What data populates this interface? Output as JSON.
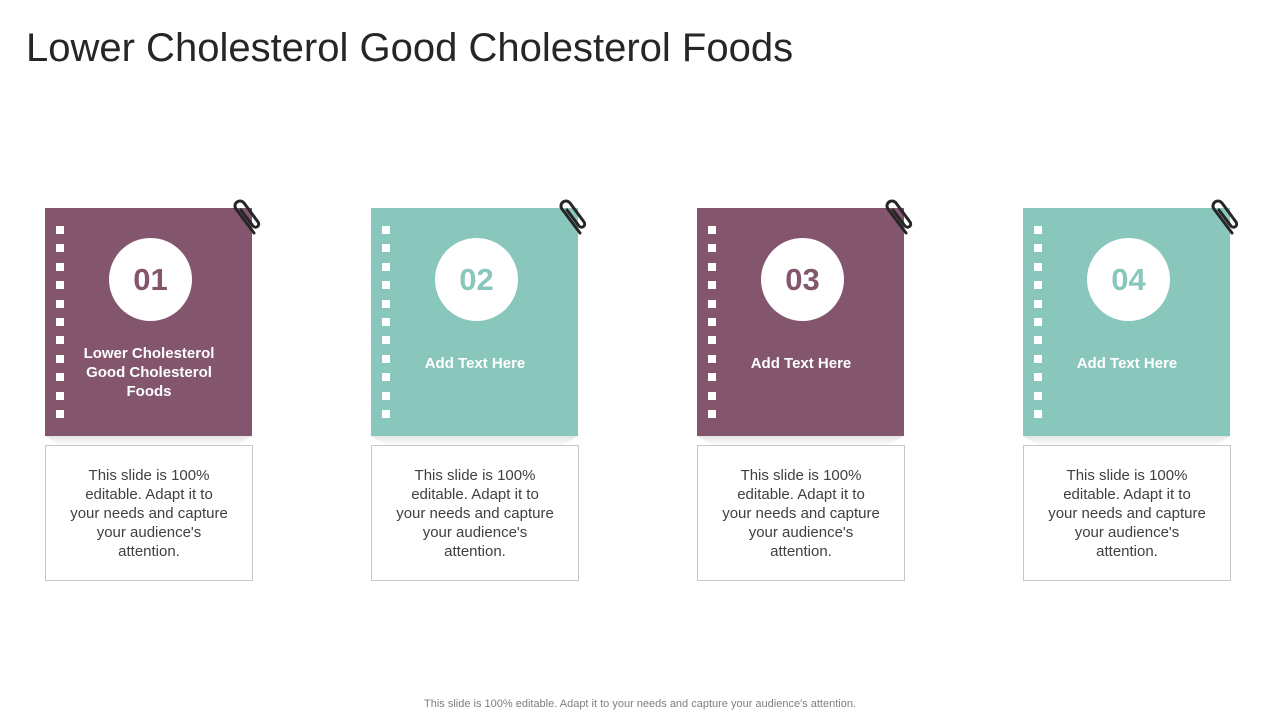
{
  "title": "Lower Cholesterol Good Cholesterol Foods",
  "cards": [
    {
      "number": "01",
      "label": "Lower Cholesterol Good Cholesterol Foods",
      "description": "This slide is 100% editable. Adapt it to your needs and capture your audience's attention."
    },
    {
      "number": "02",
      "label": "Add Text Here",
      "description": "This slide is 100% editable. Adapt it to your needs and capture your audience's attention."
    },
    {
      "number": "03",
      "label": "Add Text Here",
      "description": "This slide is 100% editable. Adapt it to your needs and capture your audience's attention."
    },
    {
      "number": "04",
      "label": "Add Text Here",
      "description": "This slide is 100% editable. Adapt it to your needs and capture your audience's attention."
    }
  ],
  "footer": "This slide is 100% editable. Adapt it to your needs and capture your audience's attention.",
  "colors": {
    "plum": "#83566e",
    "teal": "#89c6bb"
  },
  "icons": {
    "clip": "paperclip-icon",
    "holes": "notebook-binding-holes"
  }
}
